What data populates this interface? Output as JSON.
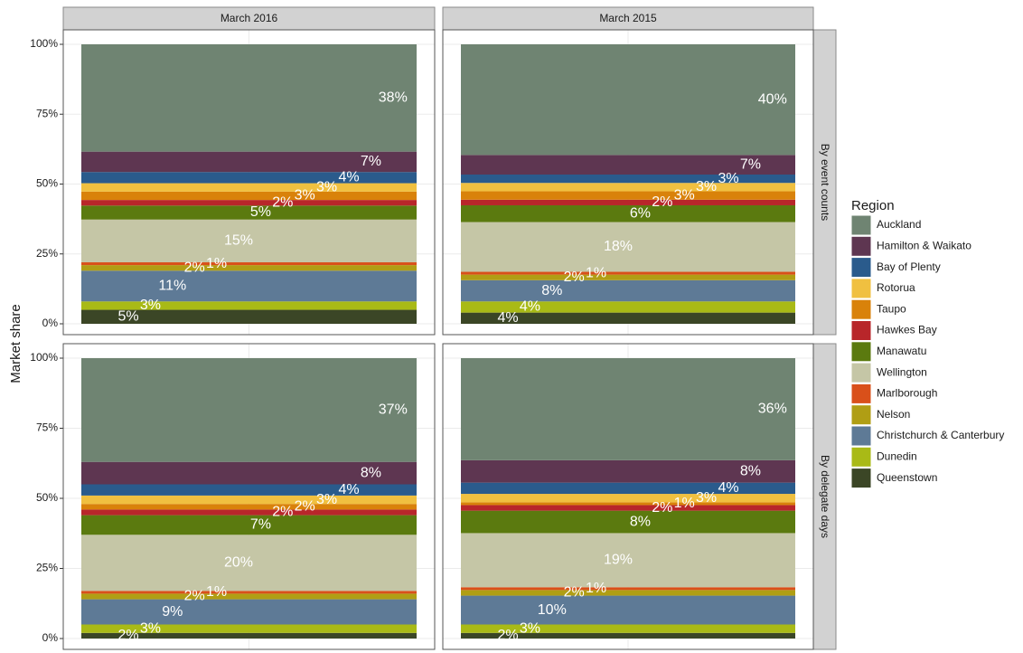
{
  "chart_data": {
    "type": "stacked_bar",
    "y_label": "Market share",
    "legend_title": "Region",
    "columns": [
      "March 2016",
      "March 2015"
    ],
    "rows": [
      "By event counts",
      "By delegate days"
    ],
    "ylim": [
      0,
      100
    ],
    "yticks": [
      {
        "value": 0,
        "label": "0%"
      },
      {
        "value": 25,
        "label": "25%"
      },
      {
        "value": 50,
        "label": "50%"
      },
      {
        "value": 75,
        "label": "75%"
      },
      {
        "value": 100,
        "label": "100%"
      }
    ],
    "grid": true,
    "series": [
      {
        "name": "Queenstown",
        "color": "#3b4626",
        "values": [
          5,
          4,
          2,
          2
        ],
        "value_labels": [
          "5%",
          "4%",
          "2%",
          "2%"
        ]
      },
      {
        "name": "Dunedin",
        "color": "#a9ba16",
        "values": [
          3,
          4,
          3,
          3
        ],
        "value_labels": [
          "3%",
          "4%",
          "3%",
          "3%"
        ]
      },
      {
        "name": "Christchurch & Canterbury",
        "color": "#5e7a96",
        "values": [
          11,
          7.6,
          9,
          10.3
        ],
        "value_labels": [
          "11%",
          "8%",
          "9%",
          "10%"
        ]
      },
      {
        "name": "Nelson",
        "color": "#b09e14",
        "values": [
          2,
          2,
          2,
          2
        ],
        "value_labels": [
          "2%",
          "2%",
          "2%",
          "2%"
        ]
      },
      {
        "name": "Marlborough",
        "color": "#d9501a",
        "values": [
          1,
          1,
          1,
          1
        ],
        "value_labels": [
          "1%",
          "1%",
          "1%",
          "1%"
        ]
      },
      {
        "name": "Wellington",
        "color": "#c5c6a6",
        "values": [
          15.3,
          17.8,
          20,
          19.3
        ],
        "value_labels": [
          "15%",
          "18%",
          "20%",
          "19%"
        ]
      },
      {
        "name": "Manawatu",
        "color": "#5b7a0f",
        "values": [
          5,
          6,
          7,
          8
        ],
        "value_labels": [
          "5%",
          "6%",
          "7%",
          "8%"
        ]
      },
      {
        "name": "Hawkes Bay",
        "color": "#b8262a",
        "values": [
          2,
          2,
          2,
          2
        ],
        "value_labels": [
          "2%",
          "2%",
          "2%",
          "2%"
        ]
      },
      {
        "name": "Taupo",
        "color": "#d9820a",
        "values": [
          3,
          3,
          2,
          1
        ],
        "value_labels": [
          "3%",
          "3%",
          "2%",
          "1%"
        ]
      },
      {
        "name": "Rotorua",
        "color": "#f0c040",
        "values": [
          3,
          3,
          3,
          3
        ],
        "value_labels": [
          "3%",
          "3%",
          "3%",
          "3%"
        ]
      },
      {
        "name": "Bay of Plenty",
        "color": "#2a5b8c",
        "values": [
          4,
          3,
          4,
          4
        ],
        "value_labels": [
          "4%",
          "3%",
          "4%",
          "4%"
        ]
      },
      {
        "name": "Hamilton & Waikato",
        "color": "#5e3651",
        "values": [
          7.3,
          7,
          8,
          8
        ],
        "value_labels": [
          "7%",
          "7%",
          "8%",
          "8%"
        ]
      },
      {
        "name": "Auckland",
        "color": "#6f8472",
        "values": [
          38.4,
          39.6,
          37,
          36.4
        ],
        "value_labels": [
          "38%",
          "40%",
          "37%",
          "36%"
        ]
      }
    ]
  }
}
